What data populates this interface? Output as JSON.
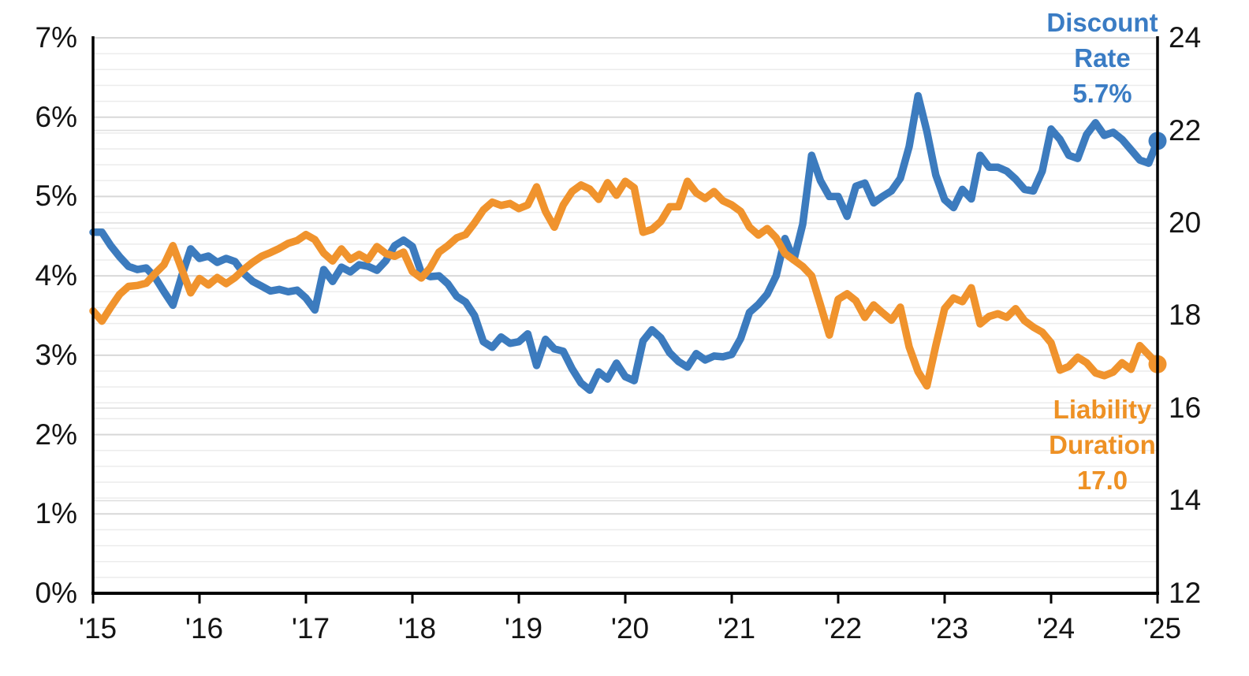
{
  "chart_data": {
    "type": "line",
    "title": "",
    "x_axis": {
      "unit": "month",
      "start": "2015-01",
      "end": "2025-01",
      "points_per_series": 121,
      "tick_labels": [
        "'15",
        "'16",
        "'17",
        "'18",
        "'19",
        "'20",
        "'21",
        "'22",
        "'23",
        "'24",
        "'25"
      ]
    },
    "left_axis": {
      "format": "percent",
      "min": 0,
      "max": 7,
      "tick_labels": [
        "7%",
        "6%",
        "5%",
        "4%",
        "3%",
        "2%",
        "1%",
        "0%"
      ]
    },
    "right_axis": {
      "format": "number",
      "min": 12,
      "max": 24,
      "tick_labels": [
        "24",
        "22",
        "20",
        "18",
        "16",
        "14",
        "12"
      ]
    },
    "grid": {
      "horizontal_minor_step_pct": 0.2,
      "horizontal_major_step_pct": 1.0,
      "vertical_gridlines": false
    },
    "legend_position": "inline-annotations",
    "series": [
      {
        "name": "Discount Rate",
        "axis": "left",
        "color": "#3C7BBE",
        "end_value_label": "5.7%",
        "end_marker": true,
        "values": [
          4.55,
          4.55,
          4.38,
          4.24,
          4.12,
          4.08,
          4.1,
          3.98,
          3.8,
          3.63,
          4.0,
          4.34,
          4.22,
          4.25,
          4.17,
          4.22,
          4.18,
          4.03,
          3.93,
          3.87,
          3.81,
          3.83,
          3.8,
          3.82,
          3.72,
          3.57,
          4.08,
          3.93,
          4.11,
          4.05,
          4.14,
          4.12,
          4.07,
          4.19,
          4.38,
          4.45,
          4.37,
          4.04,
          3.99,
          4.0,
          3.9,
          3.74,
          3.67,
          3.5,
          3.17,
          3.1,
          3.23,
          3.15,
          3.17,
          3.27,
          2.87,
          3.2,
          3.08,
          3.05,
          2.83,
          2.65,
          2.56,
          2.79,
          2.7,
          2.9,
          2.73,
          2.68,
          3.18,
          3.32,
          3.22,
          3.03,
          2.92,
          2.85,
          3.02,
          2.94,
          2.99,
          2.98,
          3.01,
          3.21,
          3.54,
          3.64,
          3.77,
          4.0,
          4.47,
          4.2,
          4.65,
          5.52,
          5.2,
          5.0,
          5.0,
          4.75,
          5.13,
          5.17,
          4.92,
          5.0,
          5.07,
          5.23,
          5.63,
          6.27,
          5.82,
          5.27,
          4.96,
          4.86,
          5.09,
          4.97,
          5.52,
          5.37,
          5.37,
          5.32,
          5.22,
          5.09,
          5.07,
          5.32,
          5.85,
          5.72,
          5.52,
          5.48,
          5.78,
          5.93,
          5.77,
          5.81,
          5.72,
          5.59,
          5.46,
          5.42,
          5.7
        ]
      },
      {
        "name": "Liability Duration",
        "axis": "right",
        "color": "#F0932D",
        "end_value_label": "17.0",
        "end_marker": true,
        "values": [
          18.1,
          17.88,
          18.18,
          18.46,
          18.63,
          18.65,
          18.7,
          18.91,
          19.1,
          19.51,
          19.0,
          18.49,
          18.8,
          18.66,
          18.82,
          18.69,
          18.82,
          19.0,
          19.15,
          19.28,
          19.36,
          19.45,
          19.56,
          19.62,
          19.75,
          19.64,
          19.35,
          19.18,
          19.44,
          19.21,
          19.32,
          19.21,
          19.49,
          19.34,
          19.28,
          19.37,
          18.95,
          18.81,
          19.03,
          19.37,
          19.51,
          19.68,
          19.75,
          20.0,
          20.28,
          20.45,
          20.38,
          20.42,
          20.31,
          20.39,
          20.78,
          20.25,
          19.91,
          20.39,
          20.68,
          20.82,
          20.73,
          20.51,
          20.87,
          20.6,
          20.9,
          20.76,
          19.8,
          19.86,
          20.03,
          20.35,
          20.35,
          20.9,
          20.65,
          20.53,
          20.68,
          20.48,
          20.39,
          20.25,
          19.91,
          19.74,
          19.88,
          19.68,
          19.34,
          19.2,
          19.06,
          18.86,
          18.23,
          17.58,
          18.35,
          18.47,
          18.32,
          17.96,
          18.23,
          18.06,
          17.9,
          18.18,
          17.32,
          16.79,
          16.48,
          17.35,
          18.15,
          18.38,
          18.3,
          18.6,
          17.82,
          17.98,
          18.04,
          17.96,
          18.15,
          17.89,
          17.75,
          17.64,
          17.41,
          16.82,
          16.9,
          17.1,
          16.98,
          16.76,
          16.7,
          16.78,
          16.98,
          16.84,
          17.35,
          17.15,
          16.95
        ]
      }
    ]
  },
  "annotations": {
    "discount_rate": {
      "lines": [
        "Discount",
        "Rate",
        "5.7%"
      ],
      "color": "#3A7CC4"
    },
    "liability_duration": {
      "lines": [
        "Liability",
        "Duration",
        "17.0"
      ],
      "color": "#EE9124"
    }
  }
}
